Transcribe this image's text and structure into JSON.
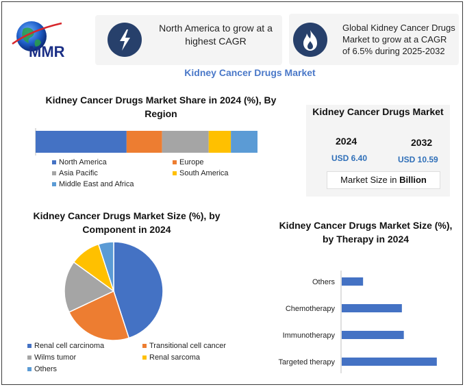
{
  "header": {
    "logo_text": "MMR",
    "callout_left": "North America to grow at a highest CAGR",
    "callout_right": "Global Kidney Cancer Drugs Market to grow at a CAGR of 6.5% during 2025-2032",
    "icon_left": "lightning-bolt-icon",
    "icon_right": "flame-icon",
    "title": "Kidney Cancer Drugs Market"
  },
  "market_size": {
    "title": "Kidney Cancer Drugs Market",
    "year1": "2024",
    "value1": "USD 6.40",
    "year2": "2032",
    "value2": "USD 10.59",
    "footer_prefix": "Market Size in ",
    "footer_bold": "Billion"
  },
  "colors": {
    "north_america": "#4472c4",
    "europe": "#ed7d31",
    "asia_pacific": "#a5a5a5",
    "south_america": "#ffc000",
    "mea": "#5b9bd5",
    "navy": "#27406b"
  },
  "chart_data": [
    {
      "type": "bar",
      "orientation": "stacked-horizontal",
      "title": "Kidney Cancer Drugs Market Share in 2024 (%), By Region",
      "series": [
        {
          "name": "North America",
          "values": [
            41
          ]
        },
        {
          "name": "Europe",
          "values": [
            16
          ]
        },
        {
          "name": "Asia Pacific",
          "values": [
            21
          ]
        },
        {
          "name": "South America",
          "values": [
            10
          ]
        },
        {
          "name": "Middle East and Africa",
          "values": [
            12
          ]
        }
      ],
      "colors": [
        "#4472c4",
        "#ed7d31",
        "#a5a5a5",
        "#ffc000",
        "#5b9bd5"
      ],
      "legend": "bottom"
    },
    {
      "type": "pie",
      "title": "Kidney Cancer Drugs Market Size (%), by Component in 2024",
      "categories": [
        "Renal cell carcinoma",
        "Transitional cell cancer",
        "Wilms tumor",
        "Renal sarcoma",
        "Others"
      ],
      "values": [
        45,
        23,
        17,
        10,
        5
      ],
      "colors": [
        "#4472c4",
        "#ed7d31",
        "#a5a5a5",
        "#ffc000",
        "#5b9bd5"
      ],
      "legend": "bottom"
    },
    {
      "type": "bar",
      "orientation": "horizontal",
      "title": "Kidney Cancer Drugs Market Size (%), by Therapy in 2024",
      "categories": [
        "Others",
        "Chemotherapy",
        "Immunotherapy",
        "Targeted therapy"
      ],
      "values": [
        11,
        31,
        32,
        49
      ],
      "xlim": [
        0,
        60
      ],
      "color": "#4472c4"
    }
  ]
}
